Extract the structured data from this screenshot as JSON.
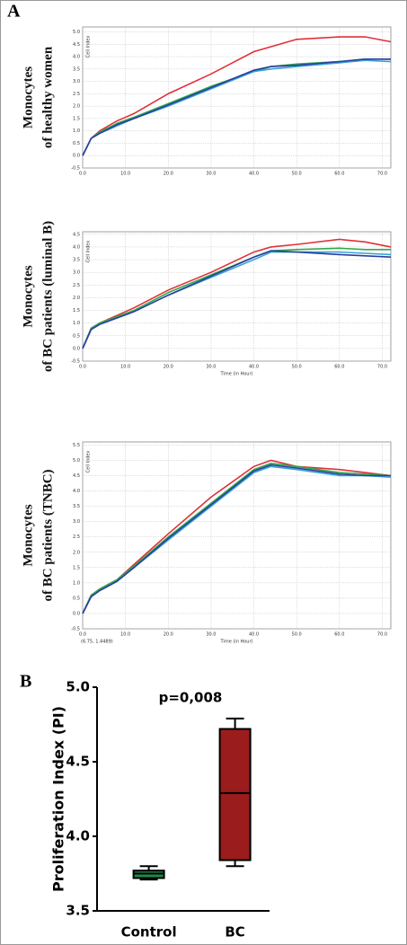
{
  "panel_labels": [
    "A",
    "B"
  ],
  "chart_data": [
    {
      "type": "line",
      "side_label_lines": [
        "Monocytes",
        "of healthy women"
      ],
      "ylabel": "Cell Index",
      "x": [
        0,
        2,
        4,
        8,
        12,
        20,
        30,
        40,
        44,
        50,
        60,
        66,
        72
      ],
      "series": [
        {
          "color": "#e0303a",
          "values": [
            0,
            0.7,
            1.0,
            1.4,
            1.7,
            2.5,
            3.3,
            4.2,
            4.4,
            4.7,
            4.8,
            4.8,
            4.6
          ]
        },
        {
          "color": "#2eaa4a",
          "values": [
            0,
            0.7,
            0.95,
            1.3,
            1.55,
            2.1,
            2.8,
            3.4,
            3.6,
            3.7,
            3.8,
            3.9,
            3.9
          ]
        },
        {
          "color": "#3aa0dc",
          "values": [
            0,
            0.7,
            0.9,
            1.2,
            1.5,
            2.0,
            2.7,
            3.4,
            3.5,
            3.6,
            3.75,
            3.85,
            3.8
          ]
        },
        {
          "color": "#2a3f9a",
          "values": [
            0,
            0.7,
            0.9,
            1.25,
            1.5,
            2.05,
            2.75,
            3.45,
            3.6,
            3.65,
            3.8,
            3.9,
            3.9
          ]
        }
      ],
      "xlim": [
        0,
        72
      ],
      "ylim": [
        -0.5,
        5.2
      ],
      "xticks": [
        {
          "value": 0,
          "label": "0.0"
        },
        {
          "value": 10,
          "label": "10.0"
        },
        {
          "value": 20,
          "label": "20.0"
        },
        {
          "value": 30,
          "label": "30.0"
        },
        {
          "value": 40,
          "label": "40.0"
        },
        {
          "value": 50,
          "label": "50.0"
        },
        {
          "value": 60,
          "label": "60.0"
        },
        {
          "value": 70,
          "label": "70.0"
        }
      ],
      "yticks": [
        -0.5,
        {
          "value": 0,
          "label": "0.0"
        },
        0.5,
        {
          "value": 1,
          "label": "1.0"
        },
        1.5,
        {
          "value": 2,
          "label": "2.0"
        },
        2.5,
        {
          "value": 3,
          "label": "3.0"
        },
        3.5,
        {
          "value": 4,
          "label": "4.0"
        },
        4.5,
        {
          "value": 5,
          "label": "5.0"
        }
      ],
      "grid": true
    },
    {
      "type": "line",
      "side_label_lines": [
        "Monocytes",
        "of BC patients (luminal  B)"
      ],
      "ylabel": "Cell Index",
      "xlabel": "Time (in Hour)",
      "x": [
        0,
        2,
        4,
        8,
        12,
        20,
        30,
        40,
        44,
        50,
        60,
        66,
        72
      ],
      "series": [
        {
          "color": "#e0303a",
          "values": [
            0,
            0.8,
            1.0,
            1.3,
            1.6,
            2.3,
            3.0,
            3.8,
            4.0,
            4.1,
            4.3,
            4.2,
            4.0
          ]
        },
        {
          "color": "#2eaa4a",
          "values": [
            0,
            0.8,
            1.0,
            1.25,
            1.5,
            2.2,
            2.9,
            3.6,
            3.85,
            3.9,
            3.95,
            3.9,
            3.9
          ]
        },
        {
          "color": "#3aa0dc",
          "values": [
            0,
            0.75,
            0.95,
            1.2,
            1.45,
            2.1,
            2.8,
            3.5,
            3.8,
            3.8,
            3.8,
            3.75,
            3.7
          ]
        },
        {
          "color": "#2a3f9a",
          "values": [
            0,
            0.75,
            0.95,
            1.2,
            1.45,
            2.1,
            2.85,
            3.6,
            3.85,
            3.8,
            3.7,
            3.65,
            3.6
          ]
        }
      ],
      "xlim": [
        0,
        72
      ],
      "ylim": [
        -0.5,
        4.6
      ],
      "xticks": [
        {
          "value": 0,
          "label": "0.0"
        },
        {
          "value": 10,
          "label": "10.0"
        },
        {
          "value": 20,
          "label": "20.0"
        },
        {
          "value": 30,
          "label": "30.0"
        },
        {
          "value": 40,
          "label": "40.0"
        },
        {
          "value": 50,
          "label": "50.0"
        },
        {
          "value": 60,
          "label": "60.0"
        },
        {
          "value": 70,
          "label": "70.0"
        }
      ],
      "yticks": [
        -0.5,
        {
          "value": 0,
          "label": "0.0"
        },
        0.5,
        {
          "value": 1,
          "label": "1.0"
        },
        1.5,
        {
          "value": 2,
          "label": "2.0"
        },
        2.5,
        {
          "value": 3,
          "label": "3.0"
        },
        3.5,
        {
          "value": 4,
          "label": "4.0"
        },
        4.5
      ],
      "grid": true
    },
    {
      "type": "line",
      "side_label_lines": [
        "Monocytes",
        "of BC patients (TNBC)"
      ],
      "ylabel": "Cell Index",
      "xlabel": "Time (in Hour)",
      "annotation": "(6.75, 1.4489)",
      "x": [
        0,
        2,
        4,
        8,
        12,
        20,
        30,
        40,
        44,
        50,
        60,
        66,
        72
      ],
      "series": [
        {
          "color": "#e0303a",
          "values": [
            0,
            0.6,
            0.8,
            1.1,
            1.6,
            2.6,
            3.8,
            4.8,
            5.0,
            4.8,
            4.7,
            4.6,
            4.5
          ]
        },
        {
          "color": "#2eaa4a",
          "values": [
            0,
            0.6,
            0.8,
            1.1,
            1.55,
            2.5,
            3.6,
            4.7,
            4.9,
            4.8,
            4.6,
            4.55,
            4.5
          ]
        },
        {
          "color": "#3aa0dc",
          "values": [
            0,
            0.55,
            0.75,
            1.05,
            1.5,
            2.4,
            3.5,
            4.6,
            4.8,
            4.7,
            4.5,
            4.5,
            4.45
          ]
        },
        {
          "color": "#2a3f9a",
          "values": [
            0,
            0.55,
            0.75,
            1.05,
            1.5,
            2.45,
            3.55,
            4.65,
            4.85,
            4.75,
            4.55,
            4.5,
            4.5
          ]
        }
      ],
      "xlim": [
        0,
        72
      ],
      "ylim": [
        -0.5,
        5.6
      ],
      "xticks": [
        {
          "value": 0,
          "label": "0.0"
        },
        {
          "value": 10,
          "label": "10.0"
        },
        {
          "value": 20,
          "label": "20.0"
        },
        {
          "value": 30,
          "label": "30.0"
        },
        {
          "value": 40,
          "label": "40.0"
        },
        {
          "value": 50,
          "label": "50.0"
        },
        {
          "value": 60,
          "label": "60.0"
        },
        {
          "value": 70,
          "label": "70.0"
        }
      ],
      "yticks": [
        -0.5,
        {
          "value": 0,
          "label": "0.0"
        },
        0.5,
        {
          "value": 1,
          "label": "1.0"
        },
        1.5,
        {
          "value": 2,
          "label": "2.0"
        },
        2.5,
        {
          "value": 3,
          "label": "3.0"
        },
        3.5,
        {
          "value": 4,
          "label": "4.0"
        },
        4.5,
        {
          "value": 5,
          "label": "5.0"
        },
        5.5
      ],
      "grid": true
    },
    {
      "type": "box",
      "ylabel": "Proliferation Index (PI)",
      "annotation": "p=0,008",
      "categories": [
        "Control",
        "BC"
      ],
      "boxes": [
        {
          "min": 3.71,
          "q1": 3.72,
          "median": 3.75,
          "q3": 3.77,
          "max": 3.8,
          "color": "#1f8a4c"
        },
        {
          "min": 3.8,
          "q1": 3.84,
          "median": 4.29,
          "q3": 4.72,
          "max": 4.79,
          "color": "#9b1c1c"
        }
      ],
      "ylim": [
        3.5,
        5.0
      ],
      "yticks": [
        3.5,
        {
          "value": 4,
          "label": "4.0"
        },
        4.5,
        {
          "value": 5,
          "label": "5.0"
        }
      ]
    }
  ]
}
